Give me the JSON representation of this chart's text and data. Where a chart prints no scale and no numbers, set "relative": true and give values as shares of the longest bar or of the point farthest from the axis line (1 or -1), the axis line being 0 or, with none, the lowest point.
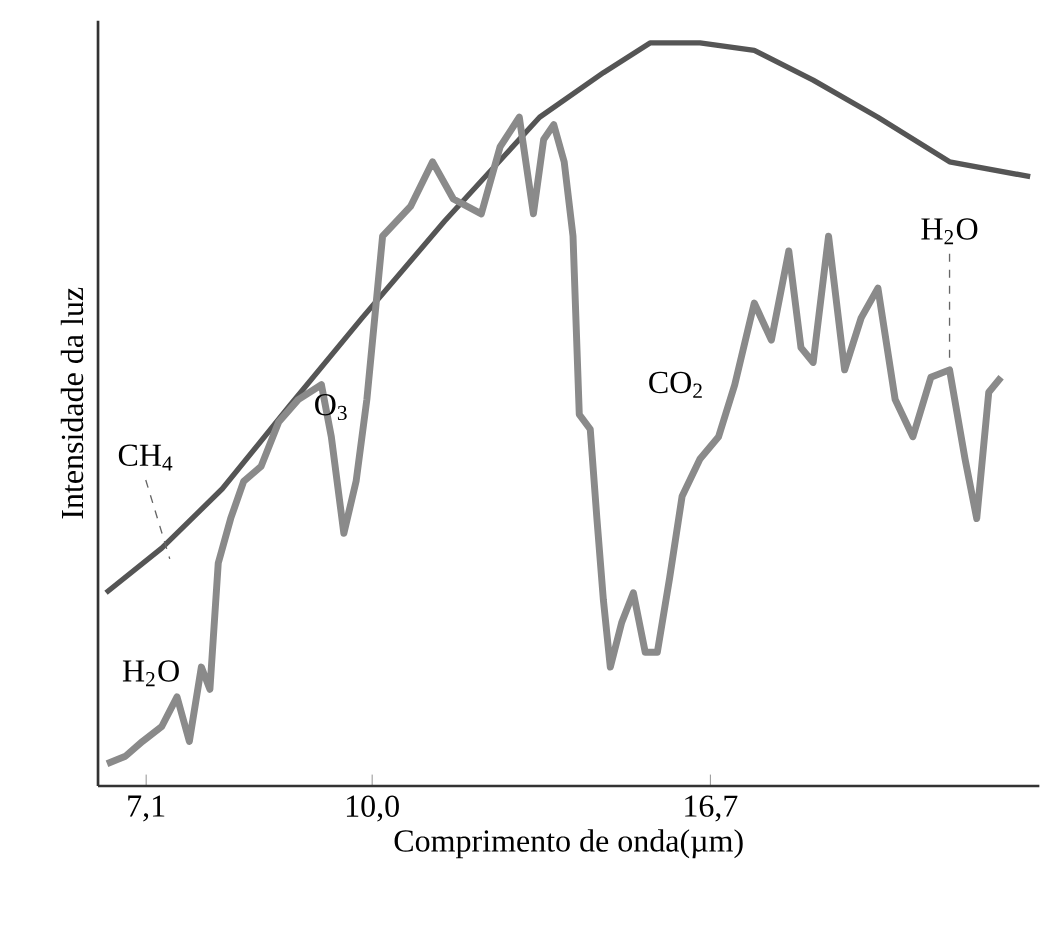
{
  "chart_data": {
    "type": "line",
    "relative": true,
    "xlabel": "Comprimento de onda(µm)",
    "ylabel": "Intensidade da luz",
    "xlim": [
      6.6,
      27.5
    ],
    "log": "x",
    "xticks": [
      {
        "value": 7.1,
        "label": "7,1"
      },
      {
        "value": 10.0,
        "label": "10,0"
      },
      {
        "value": 16.7,
        "label": "16,7"
      }
    ],
    "marker": "none",
    "line_style": "solid",
    "grid": false,
    "series": [
      {
        "color": "#555555",
        "x": [
          6.68,
          7.27,
          7.97,
          8.81,
          9.85,
          11.16,
          12.89,
          14.2,
          15.24,
          16.44,
          17.85,
          19.52,
          21.53,
          24.0,
          27.12
        ],
        "values": [
          0.26,
          0.32,
          0.4,
          0.51,
          0.63,
          0.76,
          0.9,
          0.96,
          1.0,
          1.0,
          0.99,
          0.95,
          0.9,
          0.84,
          0.82
        ]
      },
      {
        "color": "#8a8a8a",
        "x": [
          6.69,
          6.88,
          7.06,
          7.27,
          7.44,
          7.58,
          7.72,
          7.82,
          7.92,
          8.07,
          8.23,
          8.45,
          8.68,
          8.94,
          9.26,
          9.4,
          9.58,
          9.76,
          9.92,
          10.16,
          10.6,
          10.96,
          11.31,
          11.8,
          12.14,
          12.5,
          12.77,
          12.97,
          13.17,
          13.38,
          13.56,
          13.69,
          13.92,
          14.06,
          14.2,
          14.35,
          14.6,
          14.86,
          15.13,
          15.41,
          15.7,
          16.0,
          16.44,
          16.91,
          17.33,
          17.85,
          18.32,
          18.81,
          19.16,
          19.52,
          19.98,
          20.47,
          20.99,
          21.53,
          22.1,
          22.7,
          23.33,
          24.0,
          24.57,
          25.01,
          25.47,
          25.95
        ],
        "values": [
          0.03,
          0.04,
          0.06,
          0.08,
          0.12,
          0.06,
          0.16,
          0.13,
          0.3,
          0.36,
          0.41,
          0.43,
          0.49,
          0.52,
          0.54,
          0.47,
          0.34,
          0.41,
          0.52,
          0.74,
          0.78,
          0.84,
          0.79,
          0.77,
          0.86,
          0.9,
          0.77,
          0.87,
          0.89,
          0.84,
          0.74,
          0.5,
          0.48,
          0.36,
          0.25,
          0.16,
          0.22,
          0.26,
          0.18,
          0.18,
          0.28,
          0.39,
          0.44,
          0.47,
          0.54,
          0.65,
          0.6,
          0.72,
          0.59,
          0.57,
          0.74,
          0.56,
          0.63,
          0.67,
          0.52,
          0.47,
          0.55,
          0.56,
          0.44,
          0.36,
          0.53,
          0.55
        ]
      }
    ],
    "annotations": [
      {
        "text": "CH$_{4}$",
        "x": 7.27,
        "y": 0.32
      },
      {
        "text": "H$_{2}$O",
        "x": 7.27,
        "y": 0.08
      },
      {
        "text": "O$_{3}$",
        "x": 9.4,
        "y": 0.51
      },
      {
        "text": "CO$_{2}$",
        "x": 17.33,
        "y": 0.54
      },
      {
        "text": "H$_{2}$O",
        "x": 24.0,
        "y": 0.56
      }
    ]
  }
}
